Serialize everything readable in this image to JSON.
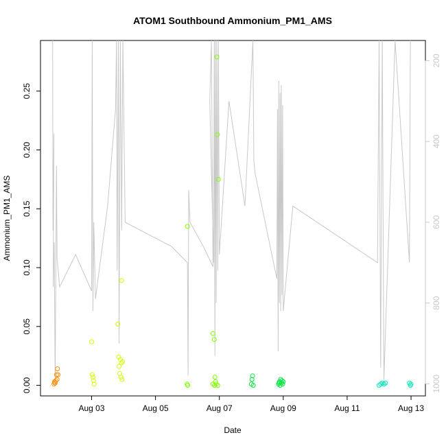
{
  "chart_data": {
    "type": "scatter",
    "title": "ATOM1 Southbound Ammonium_PM1_AMS",
    "xlabel": "Date",
    "ylabel": "Ammonium_PM1_AMS",
    "x_tick_labels": [
      "Aug 03",
      "Aug 05",
      "Aug 07",
      "Aug 09",
      "Aug 11",
      "Aug 13"
    ],
    "x_tick_values": [
      3,
      5,
      7,
      9,
      11,
      13
    ],
    "xlim": [
      1.4,
      13.45
    ],
    "ylim": [
      -0.009,
      0.293
    ],
    "y_tick_values": [
      0.0,
      0.05,
      0.1,
      0.15,
      0.2,
      0.25
    ],
    "y_tick_labels": [
      "0.00",
      "0.05",
      "0.10",
      "0.15",
      "0.20",
      "0.25"
    ],
    "right_axis": {
      "tick_values": [
        200,
        400,
        600,
        800,
        1000
      ],
      "tick_labels": [
        "200",
        "400",
        "600",
        "800",
        "1000"
      ],
      "lim": [
        1030,
        150
      ],
      "color": "#c8c8c8"
    },
    "line_color": "#c8c8c8",
    "points": [
      {
        "x": 1.82,
        "y": 0.001,
        "color": "#ff8c00"
      },
      {
        "x": 1.84,
        "y": 0.003,
        "color": "#ff8c00"
      },
      {
        "x": 1.86,
        "y": 0.002,
        "color": "#ff8c00"
      },
      {
        "x": 1.88,
        "y": 0.004,
        "color": "#ff8c00"
      },
      {
        "x": 1.9,
        "y": 0.009,
        "color": "#ff8c00"
      },
      {
        "x": 1.92,
        "y": 0.005,
        "color": "#ff8c00"
      },
      {
        "x": 1.93,
        "y": 0.014,
        "color": "#ff8c00"
      },
      {
        "x": 1.95,
        "y": 0.009,
        "color": "#ff8c00"
      },
      {
        "x": 1.85,
        "y": 0.002,
        "color": "#ff8c00"
      },
      {
        "x": 3.0,
        "y": 0.037,
        "color": "#d4ff00"
      },
      {
        "x": 3.02,
        "y": 0.009,
        "color": "#d4ff00"
      },
      {
        "x": 3.04,
        "y": 0.007,
        "color": "#d4ff00"
      },
      {
        "x": 3.06,
        "y": 0.004,
        "color": "#d4ff00"
      },
      {
        "x": 3.08,
        "y": 0.001,
        "color": "#d4ff00"
      },
      {
        "x": 3.82,
        "y": 0.052,
        "color": "#d4ff00"
      },
      {
        "x": 3.85,
        "y": 0.024,
        "color": "#d4ff00"
      },
      {
        "x": 3.86,
        "y": 0.016,
        "color": "#d4ff00"
      },
      {
        "x": 3.88,
        "y": 0.01,
        "color": "#d4ff00"
      },
      {
        "x": 3.9,
        "y": 0.022,
        "color": "#d4ff00"
      },
      {
        "x": 3.92,
        "y": 0.007,
        "color": "#d4ff00"
      },
      {
        "x": 3.93,
        "y": 0.019,
        "color": "#d4ff00"
      },
      {
        "x": 3.95,
        "y": 0.005,
        "color": "#d4ff00"
      },
      {
        "x": 3.97,
        "y": 0.02,
        "color": "#d4ff00"
      },
      {
        "x": 3.94,
        "y": 0.089,
        "color": "#d4ff00"
      },
      {
        "x": 6.0,
        "y": 0.135,
        "color": "#7fff00"
      },
      {
        "x": 5.99,
        "y": 0.001,
        "color": "#7fff00"
      },
      {
        "x": 6.01,
        "y": 0.0,
        "color": "#7fff00"
      },
      {
        "x": 6.8,
        "y": 0.044,
        "color": "#7fff00"
      },
      {
        "x": 6.84,
        "y": 0.039,
        "color": "#7fff00"
      },
      {
        "x": 6.86,
        "y": 0.007,
        "color": "#7fff00"
      },
      {
        "x": 6.8,
        "y": 0.001,
        "color": "#7fff00"
      },
      {
        "x": 6.85,
        "y": 0.0,
        "color": "#7fff00"
      },
      {
        "x": 6.9,
        "y": 0.001,
        "color": "#7fff00"
      },
      {
        "x": 6.95,
        "y": 0.0,
        "color": "#7fff00"
      },
      {
        "x": 6.88,
        "y": 0.003,
        "color": "#7fff00"
      },
      {
        "x": 6.92,
        "y": 0.279,
        "color": "#7fff00"
      },
      {
        "x": 6.94,
        "y": 0.213,
        "color": "#7fff00"
      },
      {
        "x": 6.97,
        "y": 0.175,
        "color": "#7fff00"
      },
      {
        "x": 8.0,
        "y": 0.001,
        "color": "#00e640"
      },
      {
        "x": 8.02,
        "y": 0.005,
        "color": "#00e640"
      },
      {
        "x": 8.04,
        "y": 0.008,
        "color": "#00e640"
      },
      {
        "x": 8.06,
        "y": 0.0,
        "color": "#00e640"
      },
      {
        "x": 8.85,
        "y": 0.001,
        "color": "#00e640"
      },
      {
        "x": 8.88,
        "y": 0.003,
        "color": "#00e640"
      },
      {
        "x": 8.9,
        "y": 0.0,
        "color": "#00e640"
      },
      {
        "x": 8.92,
        "y": 0.005,
        "color": "#00e640"
      },
      {
        "x": 8.94,
        "y": 0.002,
        "color": "#00e640"
      },
      {
        "x": 8.96,
        "y": 0.004,
        "color": "#00e640"
      },
      {
        "x": 8.98,
        "y": 0.001,
        "color": "#00e640"
      },
      {
        "x": 8.87,
        "y": 0.002,
        "color": "#00e640"
      },
      {
        "x": 9.0,
        "y": 0.003,
        "color": "#00e640"
      },
      {
        "x": 12.0,
        "y": 0.0,
        "color": "#00e6b4"
      },
      {
        "x": 12.05,
        "y": 0.001,
        "color": "#00e6b4"
      },
      {
        "x": 12.1,
        "y": 0.002,
        "color": "#00e6b4"
      },
      {
        "x": 12.15,
        "y": 0.001,
        "color": "#00e6b4"
      },
      {
        "x": 12.2,
        "y": 0.002,
        "color": "#00e6b4"
      },
      {
        "x": 12.95,
        "y": 0.002,
        "color": "#00e6b4"
      },
      {
        "x": 12.98,
        "y": 0.0,
        "color": "#00e6b4"
      },
      {
        "x": 13.0,
        "y": 0.001,
        "color": "#00e6b4"
      }
    ],
    "line_path": [
      [
        1.78,
        150
      ],
      [
        1.79,
        620
      ],
      [
        1.82,
        380
      ],
      [
        1.8,
        760
      ],
      [
        1.83,
        650
      ],
      [
        1.86,
        1000
      ],
      [
        1.88,
        740
      ],
      [
        1.9,
        460
      ],
      [
        1.92,
        690
      ],
      [
        2.0,
        760
      ],
      [
        2.5,
        680
      ],
      [
        3.0,
        770
      ],
      [
        3.02,
        150
      ],
      [
        3.04,
        820
      ],
      [
        3.07,
        600
      ],
      [
        3.12,
        790
      ],
      [
        3.5,
        560
      ],
      [
        3.75,
        320
      ],
      [
        3.78,
        150
      ],
      [
        3.8,
        720
      ],
      [
        3.84,
        150
      ],
      [
        3.86,
        900
      ],
      [
        3.9,
        150
      ],
      [
        3.94,
        620
      ],
      [
        3.98,
        150
      ],
      [
        4.05,
        600
      ],
      [
        5.5,
        660
      ],
      [
        6.0,
        700
      ],
      [
        6.02,
        980
      ],
      [
        6.04,
        520
      ],
      [
        6.08,
        600
      ],
      [
        6.5,
        660
      ],
      [
        6.8,
        710
      ],
      [
        6.75,
        150
      ],
      [
        6.7,
        300
      ],
      [
        6.82,
        700
      ],
      [
        6.84,
        150
      ],
      [
        6.86,
        930
      ],
      [
        6.88,
        150
      ],
      [
        6.9,
        800
      ],
      [
        6.92,
        150
      ],
      [
        6.95,
        720
      ],
      [
        6.97,
        150
      ],
      [
        7.0,
        680
      ],
      [
        7.3,
        300
      ],
      [
        7.8,
        560
      ],
      [
        8.05,
        150
      ],
      [
        8.08,
        450
      ],
      [
        8.12,
        480
      ],
      [
        8.8,
        740
      ],
      [
        8.82,
        320
      ],
      [
        8.84,
        920
      ],
      [
        8.86,
        250
      ],
      [
        8.88,
        800
      ],
      [
        8.9,
        280
      ],
      [
        8.92,
        820
      ],
      [
        8.94,
        260
      ],
      [
        8.96,
        780
      ],
      [
        8.98,
        310
      ],
      [
        9.0,
        820
      ],
      [
        9.3,
        560
      ],
      [
        11.95,
        700
      ],
      [
        12.0,
        150
      ],
      [
        12.05,
        960
      ],
      [
        12.1,
        150
      ],
      [
        12.15,
        990
      ],
      [
        12.5,
        150
      ],
      [
        12.95,
        700
      ],
      [
        12.98,
        150
      ]
    ]
  }
}
